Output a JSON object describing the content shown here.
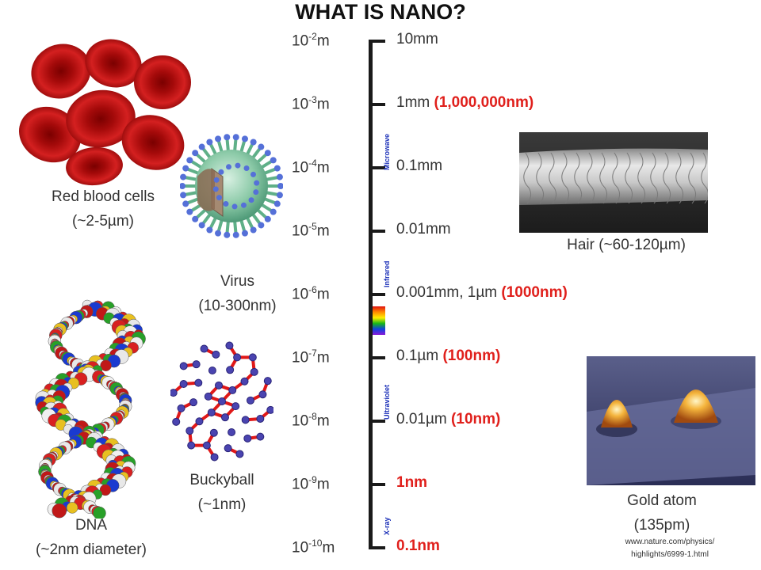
{
  "title": "WHAT IS NANO?",
  "scale": [
    {
      "base": "10",
      "exp": "-2",
      "unit": "m",
      "label": "10mm",
      "label_red": ""
    },
    {
      "base": "10",
      "exp": "-3",
      "unit": "m",
      "label": "1mm ",
      "label_red": "(1,000,000nm)"
    },
    {
      "base": "10",
      "exp": "-4",
      "unit": "m",
      "label": "0.1mm",
      "label_red": ""
    },
    {
      "base": "10",
      "exp": "-5",
      "unit": "m",
      "label": "0.01mm",
      "label_red": ""
    },
    {
      "base": "10",
      "exp": "-6",
      "unit": "m",
      "label": "0.001mm, 1µm ",
      "label_red": "(1000nm)"
    },
    {
      "base": "10",
      "exp": "-7",
      "unit": "m",
      "label": "0.1µm ",
      "label_red": "(100nm)"
    },
    {
      "base": "10",
      "exp": "-8",
      "unit": "m",
      "label": "0.01µm ",
      "label_red": "(10nm)"
    },
    {
      "base": "10",
      "exp": "-9",
      "unit": "m",
      "label": "",
      "label_red": "1nm"
    },
    {
      "base": "10",
      "exp": "-10",
      "unit": "m",
      "label": "",
      "label_red": "0.1nm"
    }
  ],
  "bands": {
    "microwave": "Microwave",
    "infrared": "Infrared",
    "ultraviolet": "Ultraviolet",
    "xray": "X-ray"
  },
  "objects": {
    "rbc": {
      "name": "Red blood cells",
      "size": "(~2-5µm)"
    },
    "virus": {
      "name": "Virus",
      "size": "(10-300nm)"
    },
    "dna": {
      "name": "DNA",
      "size": "(~2nm diameter)"
    },
    "buckyball": {
      "name": "Buckyball",
      "size": "(~1nm)"
    },
    "hair": {
      "name": "Hair (~60-120µm)"
    },
    "gold": {
      "name": "Gold atom",
      "size": "(135pm)"
    }
  },
  "source": {
    "line1": "www.nature.com/physics/",
    "line2": "highlights/6999-1.html"
  },
  "colors": {
    "accent_red": "#e0201c",
    "band_blue": "#1a2fb8",
    "axis": "#1a1a1a"
  }
}
